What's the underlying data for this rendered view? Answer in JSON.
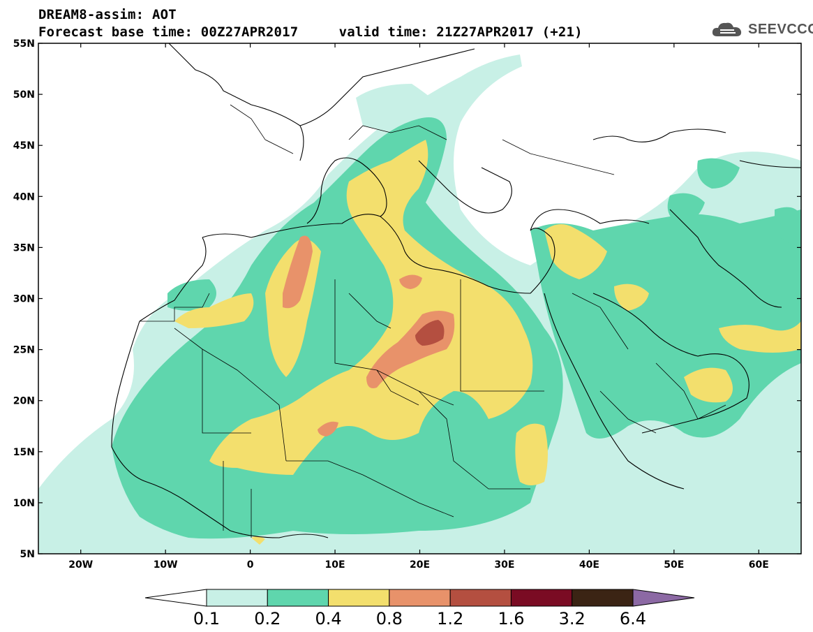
{
  "header": {
    "line1": "DREAM8-assim: AOT",
    "line2": "Forecast base time: 00Z27APR2017     valid time: 21Z27APR2017 (+21)",
    "brand": "SEEVCCC",
    "brand_icon": "cloud-logo-icon"
  },
  "map": {
    "lat_labels": [
      "55N",
      "50N",
      "45N",
      "40N",
      "35N",
      "30N",
      "25N",
      "20N",
      "15N",
      "10N",
      "5N"
    ],
    "lon_labels": [
      "20W",
      "10W",
      "0",
      "10E",
      "20E",
      "30E",
      "40E",
      "50E",
      "60E"
    ],
    "lat_range": [
      5,
      55
    ],
    "lon_range": [
      -25,
      65
    ],
    "field": "Aerosol optical thickness (dust)"
  },
  "colorbar": {
    "labels": [
      "0.1",
      "0.2",
      "0.4",
      "0.8",
      "1.2",
      "1.6",
      "3.2",
      "6.4"
    ],
    "colors": [
      "#ffffff",
      "#c8f0e6",
      "#5fd6ad",
      "#f3df6d",
      "#e8926a",
      "#b44f40",
      "#7a0b23",
      "#3b2414",
      "#8c69a4"
    ]
  },
  "colors": {
    "level_01": "#c8f0e6",
    "level_02": "#5fd6ad",
    "level_04": "#f3df6d",
    "level_08": "#e8926a",
    "level_12": "#b44f40",
    "level_16": "#7a0b23",
    "level_32": "#3b2414",
    "level_64": "#8c69a4"
  }
}
